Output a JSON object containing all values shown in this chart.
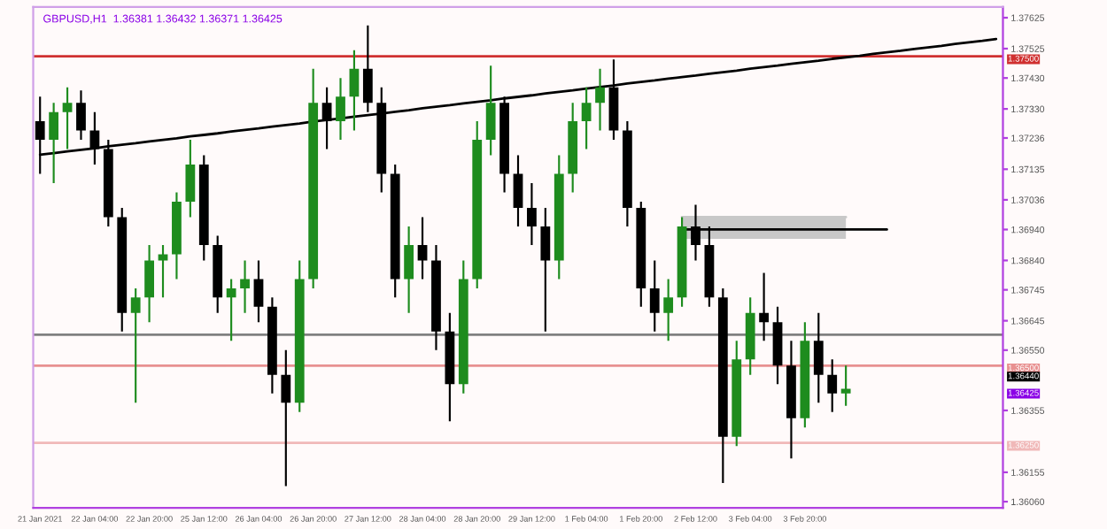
{
  "chart_data": {
    "type": "candlestick",
    "title": "GBPUSD,H1  1.36381 1.36432 1.36371 1.36425",
    "categories": [
      "21 Jan 2021",
      null,
      null,
      null,
      "22 Jan 04:00",
      null,
      null,
      null,
      "22 Jan 20:00",
      null,
      null,
      null,
      "25 Jan 12:00",
      null,
      null,
      null,
      "26 Jan 04:00",
      null,
      null,
      null,
      "26 Jan 20:00",
      null,
      null,
      null,
      "27 Jan 12:00",
      null,
      null,
      null,
      "28 Jan 04:00",
      null,
      null,
      null,
      "28 Jan 20:00",
      null,
      null,
      null,
      "29 Jan 12:00",
      null,
      null,
      null,
      "1 Feb 04:00",
      null,
      null,
      null,
      "1 Feb 20:00",
      null,
      null,
      null,
      "2 Feb 12:00",
      null,
      null,
      null,
      "3 Feb 04:00",
      null,
      null,
      null,
      "3 Feb 20:00",
      null,
      null,
      null,
      null,
      null,
      null,
      null,
      null,
      null,
      null,
      null,
      null,
      null,
      null
    ],
    "ohlc": [
      [
        1.3729,
        1.3737,
        1.3712,
        1.3723
      ],
      [
        1.3723,
        1.3735,
        1.3709,
        1.3732
      ],
      [
        1.3732,
        1.374,
        1.372,
        1.3735
      ],
      [
        1.3735,
        1.3739,
        1.3723,
        1.3726
      ],
      [
        1.3726,
        1.3732,
        1.3715,
        1.372
      ],
      [
        1.372,
        1.3723,
        1.3695,
        1.3698
      ],
      [
        1.3698,
        1.3701,
        1.3661,
        1.3667
      ],
      [
        1.3667,
        1.3675,
        1.3638,
        1.3672
      ],
      [
        1.3672,
        1.3689,
        1.3664,
        1.3684
      ],
      [
        1.3684,
        1.3689,
        1.3672,
        1.3686
      ],
      [
        1.3686,
        1.3706,
        1.3678,
        1.3703
      ],
      [
        1.3703,
        1.3723,
        1.3698,
        1.3715
      ],
      [
        1.3715,
        1.3718,
        1.3684,
        1.3689
      ],
      [
        1.3689,
        1.3692,
        1.3667,
        1.3672
      ],
      [
        1.3672,
        1.3678,
        1.3658,
        1.3675
      ],
      [
        1.3675,
        1.3684,
        1.3667,
        1.3678
      ],
      [
        1.3678,
        1.3684,
        1.3664,
        1.3669
      ],
      [
        1.3669,
        1.3672,
        1.3641,
        1.3647
      ],
      [
        1.3647,
        1.3655,
        1.3611,
        1.3638
      ],
      [
        1.3638,
        1.3684,
        1.3635,
        1.3678
      ],
      [
        1.3678,
        1.3746,
        1.3675,
        1.3735
      ],
      [
        1.3735,
        1.374,
        1.372,
        1.3729
      ],
      [
        1.3729,
        1.3743,
        1.3723,
        1.3737
      ],
      [
        1.3737,
        1.3752,
        1.3726,
        1.3746
      ],
      [
        1.3746,
        1.376,
        1.3732,
        1.3735
      ],
      [
        1.3735,
        1.374,
        1.3706,
        1.3712
      ],
      [
        1.3712,
        1.3715,
        1.3672,
        1.3678
      ],
      [
        1.3678,
        1.3695,
        1.3667,
        1.3689
      ],
      [
        1.3689,
        1.3698,
        1.3678,
        1.3684
      ],
      [
        1.3684,
        1.3689,
        1.3655,
        1.3661
      ],
      [
        1.3661,
        1.3667,
        1.3632,
        1.3644
      ],
      [
        1.3644,
        1.3684,
        1.3641,
        1.3678
      ],
      [
        1.3678,
        1.3729,
        1.3675,
        1.3723
      ],
      [
        1.3723,
        1.3747,
        1.3718,
        1.3735
      ],
      [
        1.3735,
        1.3737,
        1.3706,
        1.3712
      ],
      [
        1.3712,
        1.3718,
        1.3695,
        1.3701
      ],
      [
        1.3701,
        1.3709,
        1.3689,
        1.3695
      ],
      [
        1.3695,
        1.3701,
        1.3661,
        1.3684
      ],
      [
        1.3684,
        1.3718,
        1.3678,
        1.3712
      ],
      [
        1.3712,
        1.3735,
        1.3706,
        1.3729
      ],
      [
        1.3729,
        1.374,
        1.372,
        1.3735
      ],
      [
        1.3735,
        1.3746,
        1.3726,
        1.374
      ],
      [
        1.374,
        1.3749,
        1.3723,
        1.3726
      ],
      [
        1.3726,
        1.3729,
        1.3695,
        1.3701
      ],
      [
        1.3701,
        1.3703,
        1.3669,
        1.3675
      ],
      [
        1.3675,
        1.3684,
        1.3661,
        1.3667
      ],
      [
        1.3667,
        1.3678,
        1.3658,
        1.3672
      ],
      [
        1.3672,
        1.3698,
        1.3669,
        1.3695
      ],
      [
        1.3695,
        1.3702,
        1.3684,
        1.3689
      ],
      [
        1.3689,
        1.3695,
        1.3669,
        1.3672
      ],
      [
        1.3672,
        1.3675,
        1.3612,
        1.3627
      ],
      [
        1.3627,
        1.3658,
        1.3624,
        1.3652
      ],
      [
        1.3652,
        1.3672,
        1.3647,
        1.3667
      ],
      [
        1.3667,
        1.368,
        1.3658,
        1.3664
      ],
      [
        1.3664,
        1.3669,
        1.3644,
        1.365
      ],
      [
        1.365,
        1.3658,
        1.362,
        1.3633
      ],
      [
        1.3633,
        1.3664,
        1.363,
        1.3658
      ],
      [
        1.3658,
        1.3667,
        1.3638,
        1.3647
      ],
      [
        1.3647,
        1.3652,
        1.3635,
        1.3641
      ],
      [
        1.3641,
        1.365,
        1.3637,
        1.36425
      ],
      null,
      null,
      null,
      null,
      null,
      null,
      null,
      null,
      null,
      null,
      null
    ],
    "colors": [
      "#000000",
      "#1e8c1e",
      "#1e8c1e",
      "#000000",
      "#000000",
      "#000000",
      "#000000",
      "#1e8c1e",
      "#1e8c1e",
      "#1e8c1e",
      "#1e8c1e",
      "#1e8c1e",
      "#000000",
      "#000000",
      "#1e8c1e",
      "#1e8c1e",
      "#000000",
      "#000000",
      "#000000",
      "#1e8c1e",
      "#1e8c1e",
      "#000000",
      "#1e8c1e",
      "#1e8c1e",
      "#000000",
      "#000000",
      "#000000",
      "#1e8c1e",
      "#000000",
      "#000000",
      "#000000",
      "#1e8c1e",
      "#1e8c1e",
      "#1e8c1e",
      "#000000",
      "#000000",
      "#000000",
      "#000000",
      "#1e8c1e",
      "#1e8c1e",
      "#1e8c1e",
      "#1e8c1e",
      "#000000",
      "#000000",
      "#000000",
      "#000000",
      "#1e8c1e",
      "#1e8c1e",
      "#000000",
      "#000000",
      "#000000",
      "#1e8c1e",
      "#1e8c1e",
      "#000000",
      "#000000",
      "#000000",
      "#1e8c1e",
      "#000000",
      "#000000",
      "#1e8c1e",
      null,
      null,
      null,
      null,
      null,
      null,
      null,
      null,
      null,
      null,
      null
    ],
    "series": [
      {
        "type": "line",
        "color": "#000000",
        "values": [
          1.37182,
          1.37187,
          1.37193,
          1.37198,
          1.37203,
          1.37209,
          1.37214,
          1.37219,
          1.37225,
          1.3723,
          1.37235,
          1.37241,
          1.37246,
          1.37251,
          1.37257,
          1.37262,
          1.37267,
          1.37273,
          1.37278,
          1.37283,
          1.37289,
          1.37294,
          1.37299,
          1.37305,
          1.3731,
          1.37315,
          1.37321,
          1.37326,
          1.37332,
          1.37337,
          1.37342,
          1.37348,
          1.37353,
          1.37358,
          1.37364,
          1.37369,
          1.37374,
          1.3738,
          1.37385,
          1.3739,
          1.37396,
          1.37401,
          1.37406,
          1.37412,
          1.37417,
          1.37422,
          1.37428,
          1.37433,
          1.37438,
          1.37444,
          1.37449,
          1.37454,
          1.3746,
          1.37465,
          1.3747,
          1.37476,
          1.37481,
          1.37486,
          1.37492,
          1.37497,
          1.37502,
          1.37508,
          1.37513,
          1.37518,
          1.37524,
          1.37529,
          1.37534,
          1.3754,
          1.37545,
          1.3755,
          1.37556
        ]
      },
      {
        "type": "line",
        "color": "#000000",
        "values": [
          null,
          null,
          null,
          null,
          null,
          null,
          null,
          null,
          null,
          null,
          null,
          null,
          null,
          null,
          null,
          null,
          null,
          null,
          null,
          null,
          null,
          null,
          null,
          null,
          null,
          null,
          null,
          null,
          null,
          null,
          null,
          null,
          null,
          null,
          null,
          null,
          null,
          null,
          null,
          null,
          null,
          null,
          null,
          null,
          null,
          null,
          null,
          1.3694,
          1.3694,
          1.3694,
          1.3694,
          1.3694,
          1.3694,
          1.3694,
          1.3694,
          1.3694,
          1.3694,
          1.3694,
          1.3694,
          1.3694,
          1.3694,
          1.3694,
          1.3694,
          null,
          null,
          null,
          null,
          null,
          null,
          null,
          null
        ]
      },
      {
        "type": "line",
        "color": "#c8c8c8",
        "values": [
          null,
          null,
          null,
          null,
          null,
          null,
          null,
          null,
          null,
          null,
          null,
          null,
          null,
          null,
          null,
          null,
          null,
          null,
          null,
          null,
          null,
          null,
          null,
          null,
          null,
          null,
          null,
          null,
          null,
          null,
          null,
          null,
          null,
          null,
          null,
          null,
          null,
          null,
          null,
          null,
          null,
          null,
          null,
          null,
          null,
          null,
          null,
          1.3698,
          1.3698,
          1.3698,
          1.3698,
          1.3698,
          1.3698,
          1.3698,
          1.3698,
          1.3698,
          1.3698,
          1.3698,
          1.3698,
          1.3698,
          null,
          null,
          null,
          null,
          null,
          null,
          null,
          null,
          null,
          null,
          null
        ],
        "lower": [
          null,
          null,
          null,
          null,
          null,
          null,
          null,
          null,
          null,
          null,
          null,
          null,
          null,
          null,
          null,
          null,
          null,
          null,
          null,
          null,
          null,
          null,
          null,
          null,
          null,
          null,
          null,
          null,
          null,
          null,
          null,
          null,
          null,
          null,
          null,
          null,
          null,
          null,
          null,
          null,
          null,
          null,
          null,
          null,
          null,
          null,
          null,
          1.3691,
          1.3691,
          1.3691,
          1.3691,
          1.3691,
          1.3691,
          1.3691,
          1.3691,
          1.3691,
          1.3691,
          1.3691,
          1.3691,
          1.3691,
          null,
          null,
          null,
          null,
          null,
          null,
          null,
          null,
          null,
          null,
          null
        ],
        "upper": [
          null,
          null,
          null,
          null,
          null,
          null,
          null,
          null,
          null,
          null,
          null,
          null,
          null,
          null,
          null,
          null,
          null,
          null,
          null,
          null,
          null,
          null,
          null,
          null,
          null,
          null,
          null,
          null,
          null,
          null,
          null,
          null,
          null,
          null,
          null,
          null,
          null,
          null,
          null,
          null,
          null,
          null,
          null,
          null,
          null,
          null,
          null,
          1.3698,
          1.3698,
          1.3698,
          1.3698,
          1.3698,
          1.3698,
          1.3698,
          1.3698,
          1.3698,
          1.3698,
          1.3698,
          1.3698,
          1.3698,
          null,
          null,
          null,
          null,
          null,
          null,
          null,
          null,
          null,
          null,
          null
        ]
      }
    ],
    "ref_lines": [
      {
        "axis": "y",
        "value": 1.375,
        "label": "1.37500",
        "color": "#d03030"
      },
      {
        "axis": "y",
        "value": 1.366,
        "color": "#808080"
      },
      {
        "axis": "y",
        "value": 1.365,
        "label": "1.36500",
        "color": "#e89090"
      },
      {
        "axis": "y",
        "value": 1.3625,
        "label": "1.36250",
        "color": "#f0b8b8"
      }
    ],
    "annotations": [
      "1.36440",
      "1.36425"
    ],
    "ylim": [
      1.3604,
      1.3766
    ],
    "yticks": [
      {
        "value": 1.37625,
        "label": "1.37625"
      },
      {
        "value": 1.37525,
        "label": "1.37525"
      },
      {
        "value": 1.3743,
        "label": "1.37430"
      },
      {
        "value": 1.3733,
        "label": "1.37330"
      },
      {
        "value": 1.37236,
        "label": "1.37236"
      },
      {
        "value": 1.37135,
        "label": "1.37135"
      },
      {
        "value": 1.37036,
        "label": "1.37036"
      },
      {
        "value": 1.3694,
        "label": "1.36940"
      },
      {
        "value": 1.3684,
        "label": "1.36840"
      },
      {
        "value": 1.36745,
        "label": "1.36745"
      },
      {
        "value": 1.36645,
        "label": "1.36645"
      },
      {
        "value": 1.3655,
        "label": "1.36550"
      },
      {
        "value": 1.36355,
        "label": "1.36355"
      },
      {
        "value": 1.36155,
        "label": "1.36155"
      },
      {
        "value": 1.3606,
        "label": "1.36060"
      }
    ],
    "grid": false,
    "legend": false
  }
}
